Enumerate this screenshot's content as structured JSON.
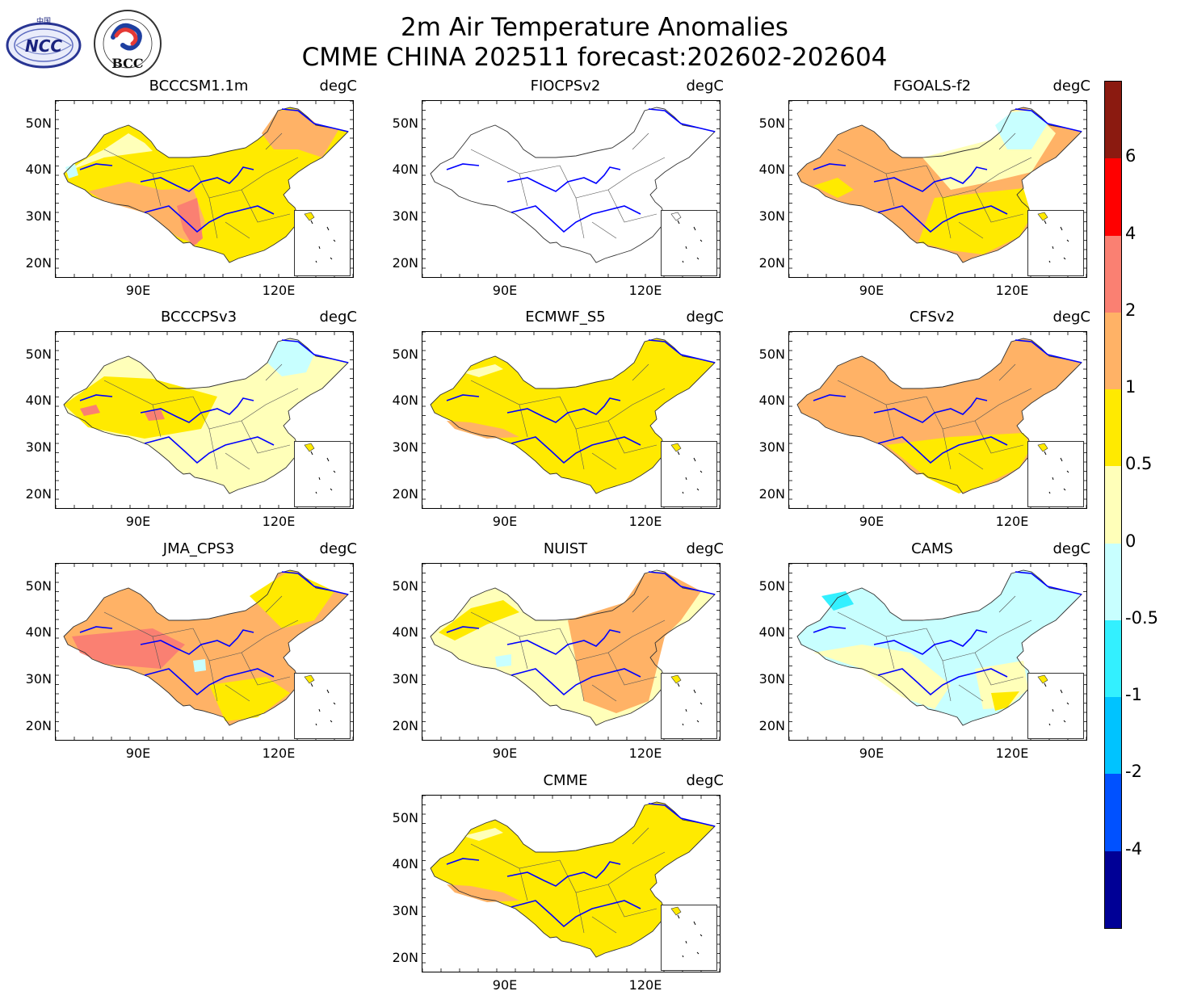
{
  "title_line1": "2m Air Temperature Anomalies",
  "title_line2": "CMME CHINA 202511 forecast:202602-202604",
  "logo_left": {
    "name": "NCC",
    "text": "NCC",
    "top_text": "中国"
  },
  "logo_right": {
    "name": "BCC",
    "text": "BCC",
    "ring_text": "BEIJING CLIMATE CENTER"
  },
  "unit": "degC",
  "lat_ticks": [
    "50N",
    "40N",
    "30N",
    "20N"
  ],
  "lon_ticks": [
    "90E",
    "120E"
  ],
  "panels": [
    {
      "name": "BCCCSM1.1m",
      "unit": "degC",
      "dominant": "0.5 to 1",
      "pattern": "warm-sw"
    },
    {
      "name": "FIOCPSv2",
      "unit": "degC",
      "dominant": "none",
      "pattern": "blank"
    },
    {
      "name": "FGOALS-f2",
      "unit": "degC",
      "dominant": "1 to 2",
      "pattern": "cool-ne"
    },
    {
      "name": "BCCCPSv3",
      "unit": "degC",
      "dominant": "0 to 0.5",
      "pattern": "mixed"
    },
    {
      "name": "ECMWF_S5",
      "unit": "degC",
      "dominant": "0.5 to 1",
      "pattern": "yellow"
    },
    {
      "name": "CFSv2",
      "unit": "degC",
      "dominant": "1 to 2",
      "pattern": "orange"
    },
    {
      "name": "JMA_CPS3",
      "unit": "degC",
      "dominant": "1 to 2",
      "pattern": "warm-west"
    },
    {
      "name": "NUIST",
      "unit": "degC",
      "dominant": "1 to 2",
      "pattern": "warm-east"
    },
    {
      "name": "CAMS",
      "unit": "degC",
      "dominant": "-0.5 to 0",
      "pattern": "cool"
    },
    {
      "name": "CMME",
      "unit": "degC",
      "dominant": "0.5 to 1",
      "pattern": "yellow"
    }
  ],
  "colorbar": {
    "levels": [
      "6",
      "4",
      "2",
      "1",
      "0.5",
      "0",
      "-0.5",
      "-1",
      "-2",
      "-4"
    ],
    "colors": [
      "#8b1a10",
      "#ff0000",
      "#fa8072",
      "#ffb266",
      "#ffea00",
      "#ffffb9",
      "#c8ffff",
      "#33f0ff",
      "#00c3ff",
      "#0051ff",
      "#000096"
    ]
  },
  "colors": {
    "lt0": "#c8ffff",
    "c0": "#ffffb9",
    "c05": "#ffea00",
    "c1": "#ffb266",
    "c2": "#fa8072",
    "c4": "#ff0000",
    "river": "#0000ff",
    "border": "#555555"
  }
}
